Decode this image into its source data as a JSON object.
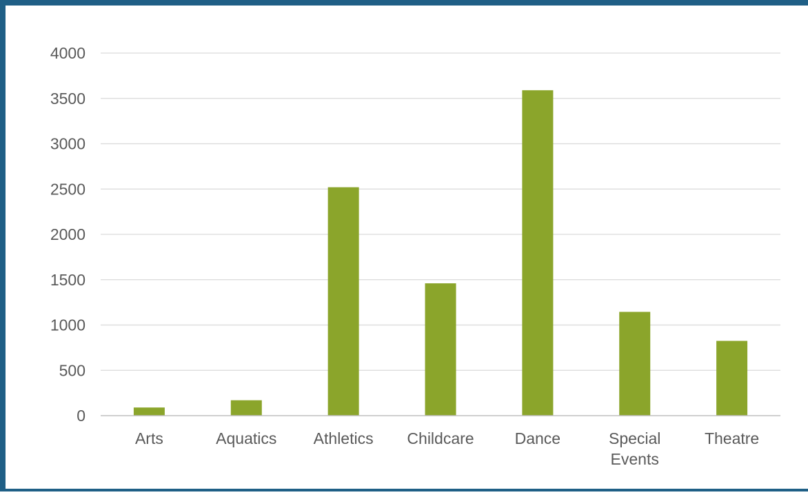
{
  "chart_data": {
    "type": "bar",
    "categories": [
      "Arts",
      "Aquatics",
      "Athletics",
      "Childcare",
      "Dance",
      "Special Events",
      "Theatre"
    ],
    "category_label_lines": [
      [
        "Arts"
      ],
      [
        "Aquatics"
      ],
      [
        "Athletics"
      ],
      [
        "Childcare"
      ],
      [
        "Dance"
      ],
      [
        "Special",
        "Events"
      ],
      [
        "Theatre"
      ]
    ],
    "values": [
      90,
      170,
      2520,
      1460,
      3590,
      1145,
      825
    ],
    "ylim": [
      0,
      4000
    ],
    "yticks": [
      "0",
      "500",
      "1000",
      "1500",
      "2000",
      "2500",
      "3000",
      "3500",
      "4000"
    ],
    "title": "",
    "xlabel": "",
    "ylabel": "",
    "grid": true,
    "legend": "none",
    "colors": {
      "bar": "#8ba52b",
      "grid": "#d9d9d9",
      "axis": "#bfbfbf",
      "frame": "#1f5f86"
    }
  }
}
